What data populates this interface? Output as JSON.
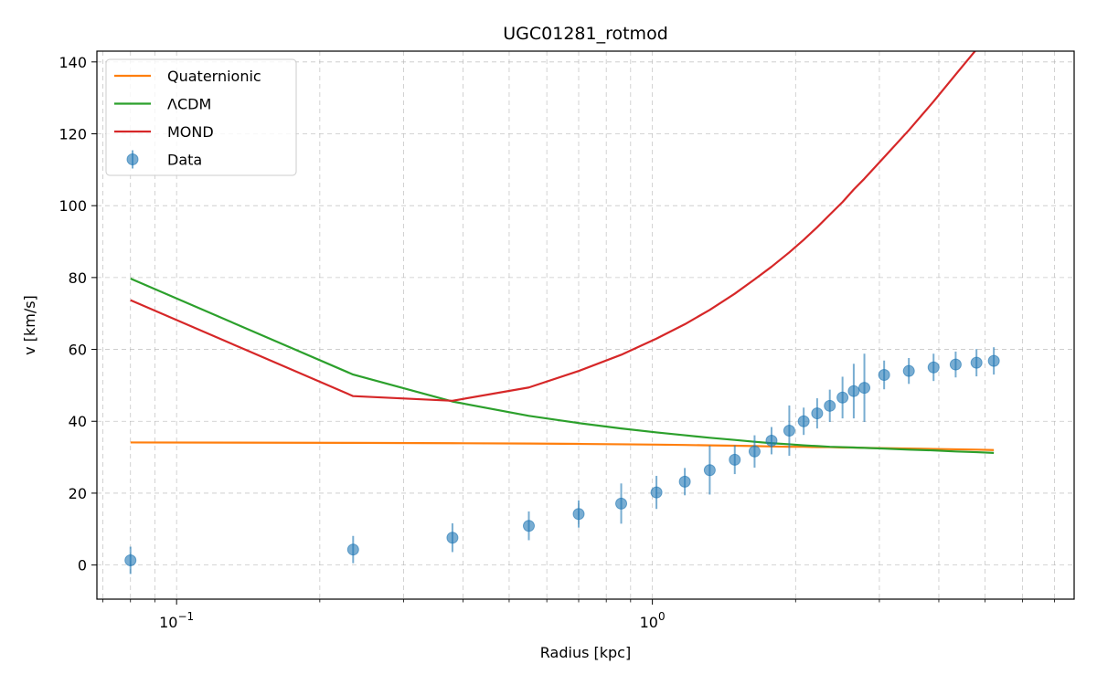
{
  "chart_data": {
    "type": "line",
    "title": "UGC01281_rotmod",
    "xlabel": "Radius [kpc]",
    "ylabel": "v [km/s]",
    "xscale": "log",
    "xlim": [
      0.068,
      7.7
    ],
    "ylim": [
      -9.5,
      143
    ],
    "grid": true,
    "legend_position": "top-left",
    "x_tick_labels": [
      {
        "value": 0.1,
        "base": "10",
        "exp": "−1"
      },
      {
        "value": 1,
        "base": "10",
        "exp": "0"
      }
    ],
    "y_tick_labels": [
      {
        "value": 0,
        "label": "0"
      },
      {
        "value": 20,
        "label": "20"
      },
      {
        "value": 40,
        "label": "40"
      },
      {
        "value": 60,
        "label": "60"
      },
      {
        "value": 80,
        "label": "80"
      },
      {
        "value": 100,
        "label": "100"
      },
      {
        "value": 120,
        "label": "120"
      },
      {
        "value": 140,
        "label": "140"
      }
    ],
    "series": [
      {
        "name": "Quaternionic",
        "kind": "line",
        "color": "#ff7f0e",
        "x": [
          0.08,
          0.235,
          0.38,
          0.55,
          0.7,
          0.86,
          1.02,
          1.17,
          1.32,
          1.49,
          1.64,
          1.78,
          1.94,
          2.08,
          2.22,
          2.36,
          2.51,
          2.65,
          2.79,
          3.07,
          3.46,
          3.9,
          4.34,
          4.8,
          5.22
        ],
        "y": [
          34.1,
          34.0,
          33.9,
          33.8,
          33.7,
          33.6,
          33.5,
          33.4,
          33.3,
          33.2,
          33.1,
          33.0,
          32.9,
          32.9,
          32.8,
          32.8,
          32.7,
          32.7,
          32.6,
          32.5,
          32.4,
          32.3,
          32.2,
          32.1,
          32.0
        ]
      },
      {
        "name": "ΛCDM",
        "kind": "line",
        "color": "#2ca02c",
        "x": [
          0.08,
          0.235,
          0.38,
          0.55,
          0.7,
          0.86,
          1.02,
          1.17,
          1.32,
          1.49,
          1.64,
          1.78,
          1.94,
          2.08,
          2.22,
          2.36,
          2.51,
          2.65,
          2.79,
          3.07,
          3.46,
          3.9,
          4.34,
          4.8,
          5.22
        ],
        "y": [
          79.7,
          53.0,
          45.5,
          41.5,
          39.5,
          38.0,
          36.9,
          36.1,
          35.4,
          34.8,
          34.3,
          33.9,
          33.6,
          33.3,
          33.1,
          32.9,
          32.8,
          32.7,
          32.6,
          32.4,
          32.1,
          31.9,
          31.6,
          31.4,
          31.2
        ]
      },
      {
        "name": "MOND",
        "kind": "line",
        "color": "#d62728",
        "x": [
          0.08,
          0.235,
          0.38,
          0.55,
          0.7,
          0.86,
          1.02,
          1.17,
          1.32,
          1.49,
          1.64,
          1.78,
          1.94,
          2.08,
          2.22,
          2.36,
          2.51,
          2.65,
          2.79,
          3.07,
          3.46,
          3.9,
          4.34,
          4.8,
          5.22
        ],
        "y": [
          73.7,
          47.0,
          45.7,
          49.4,
          54.0,
          58.5,
          63.0,
          67.0,
          71.0,
          75.5,
          79.5,
          83.0,
          87.0,
          90.5,
          94.0,
          97.5,
          101.0,
          104.5,
          107.5,
          113.5,
          121.0,
          129.0,
          136.5,
          143.5,
          150.0
        ]
      },
      {
        "name": "Data",
        "kind": "errorbar",
        "color": "#1f77b4",
        "x": [
          0.08,
          0.235,
          0.38,
          0.55,
          0.7,
          0.86,
          1.02,
          1.17,
          1.32,
          1.49,
          1.64,
          1.78,
          1.94,
          2.08,
          2.22,
          2.36,
          2.51,
          2.65,
          2.79,
          3.07,
          3.46,
          3.9,
          4.34,
          4.8,
          5.22
        ],
        "y": [
          1.3,
          4.3,
          7.6,
          10.9,
          14.2,
          17.1,
          20.2,
          23.2,
          26.4,
          29.3,
          31.6,
          34.6,
          37.4,
          40.0,
          42.2,
          44.3,
          46.6,
          48.4,
          49.3,
          52.9,
          54.0,
          55.0,
          55.8,
          56.3,
          56.8
        ],
        "yerr": [
          3.8,
          3.8,
          4.0,
          4.0,
          3.8,
          5.6,
          4.6,
          3.8,
          6.8,
          4.0,
          4.5,
          3.8,
          7.0,
          3.8,
          4.2,
          4.5,
          5.8,
          7.6,
          9.5,
          4.0,
          3.6,
          3.8,
          3.6,
          3.8,
          3.8
        ]
      }
    ]
  }
}
